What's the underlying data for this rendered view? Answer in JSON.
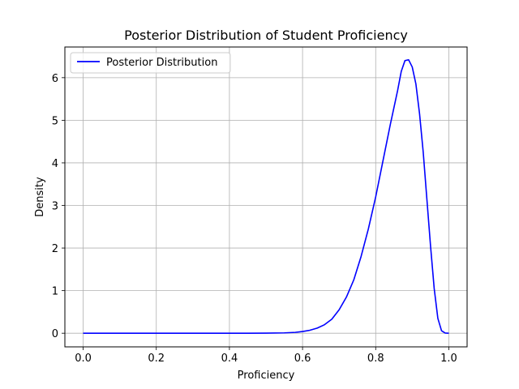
{
  "chart_data": {
    "type": "line",
    "title": "Posterior Distribution of Student Proficiency",
    "xlabel": "Proficiency",
    "ylabel": "Density",
    "xlim": [
      -0.05,
      1.05
    ],
    "ylim": [
      -0.32,
      6.72
    ],
    "xticks": [
      0.0,
      0.2,
      0.4,
      0.6,
      0.8,
      1.0
    ],
    "xtick_labels": [
      "0.0",
      "0.2",
      "0.4",
      "0.6",
      "0.8",
      "1.0"
    ],
    "yticks": [
      0,
      1,
      2,
      3,
      4,
      5,
      6
    ],
    "ytick_labels": [
      "0",
      "1",
      "2",
      "3",
      "4",
      "5",
      "6"
    ],
    "grid": true,
    "legend_position": "top-left",
    "series": [
      {
        "name": "Posterior Distribution",
        "color": "#0000ff",
        "x": [
          0.0,
          0.45,
          0.5,
          0.55,
          0.58,
          0.6,
          0.62,
          0.64,
          0.66,
          0.68,
          0.7,
          0.72,
          0.74,
          0.76,
          0.78,
          0.8,
          0.82,
          0.84,
          0.86,
          0.87,
          0.88,
          0.89,
          0.9,
          0.91,
          0.92,
          0.93,
          0.94,
          0.95,
          0.96,
          0.97,
          0.98,
          0.99,
          1.0
        ],
        "y": [
          0.0,
          0.0,
          0.002,
          0.008,
          0.02,
          0.04,
          0.07,
          0.12,
          0.2,
          0.33,
          0.55,
          0.85,
          1.25,
          1.8,
          2.45,
          3.2,
          4.05,
          4.9,
          5.7,
          6.15,
          6.4,
          6.42,
          6.25,
          5.85,
          5.15,
          4.25,
          3.15,
          2.05,
          1.05,
          0.35,
          0.06,
          0.005,
          0.0
        ]
      }
    ]
  }
}
